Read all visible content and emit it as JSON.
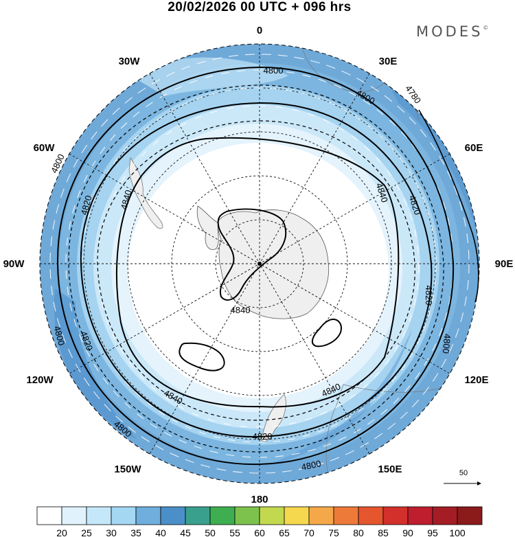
{
  "header": {
    "title": "20/02/2026  00 UTC  + 096 hrs",
    "brand": "MODES",
    "brand_mark": "©"
  },
  "map": {
    "projection": "south polar stereographic",
    "longitude_labels": [
      "0",
      "30E",
      "60E",
      "90E",
      "120E",
      "150E",
      "180",
      "150W",
      "120W",
      "90W",
      "60W",
      "30W"
    ],
    "contour_labels": [
      "4800",
      "4800",
      "4780",
      "4800",
      "4840",
      "4820",
      "4820",
      "4800",
      "4840",
      "4840",
      "4820",
      "4800",
      "4840",
      "4820",
      "4800",
      "4820",
      "4800"
    ],
    "reference_vector": "50"
  },
  "colorbar": {
    "labels": [
      "20",
      "25",
      "30",
      "35",
      "40",
      "45",
      "50",
      "55",
      "60",
      "65",
      "70",
      "75",
      "80",
      "85",
      "90",
      "95",
      "100"
    ],
    "colors": [
      "#ffffff",
      "#e0f3fd",
      "#c4e8fa",
      "#a4d7f2",
      "#6faedd",
      "#4b8fc8",
      "#3aa08e",
      "#3fae50",
      "#7dc24d",
      "#c2d94f",
      "#f6d84e",
      "#f5a84a",
      "#ee7a3a",
      "#e5552e",
      "#d3302b",
      "#be1e2d",
      "#a51d24",
      "#8b1a1a"
    ]
  }
}
